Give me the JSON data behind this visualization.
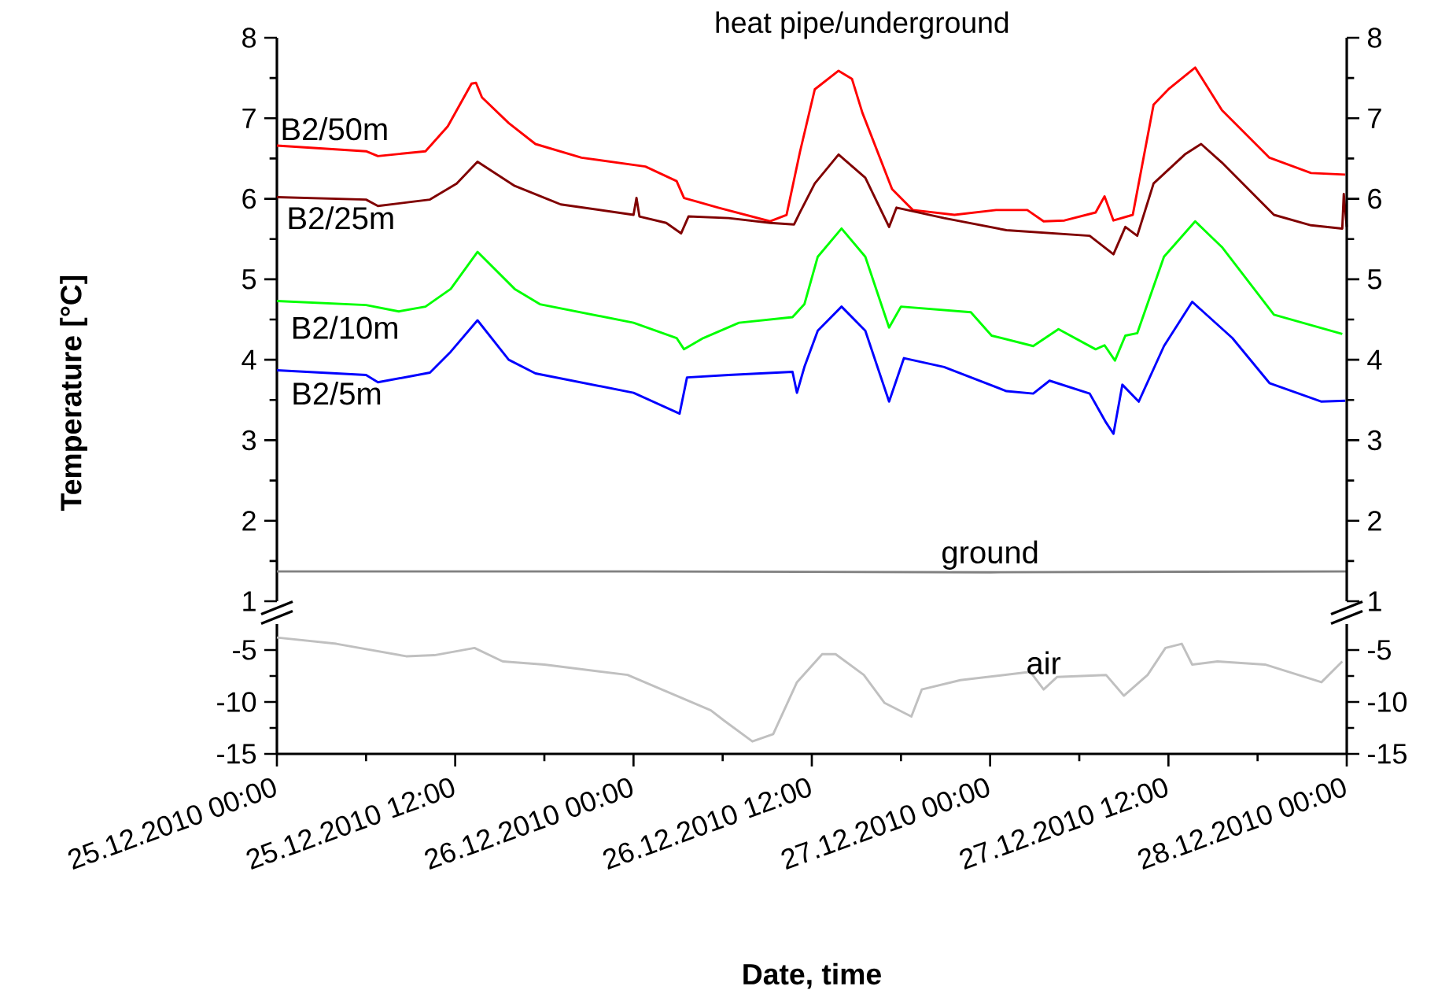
{
  "chart_data": [
    {
      "type": "line",
      "title": "heat pipe/underground",
      "ylabel": "Temperature [°C]",
      "xlim": [
        "2010-12-25T00:00",
        "2010-12-28T00:00"
      ],
      "ylim": [
        1,
        8
      ],
      "yticks": [
        1,
        2,
        3,
        4,
        5,
        6,
        7,
        8
      ],
      "y2lim": [
        1,
        8
      ],
      "y2ticks": [
        1,
        2,
        3,
        4,
        5,
        6,
        7,
        8
      ],
      "tick_labels": "y",
      "marker": "none",
      "series": [
        {
          "name": "B2/50m",
          "color": "#ff0000",
          "x": [
            "2010-12-25T00:00",
            "2010-12-25T06:00",
            "2010-12-25T06:48",
            "2010-12-25T10:00",
            "2010-12-25T11:30",
            "2010-12-25T13:06",
            "2010-12-25T13:24",
            "2010-12-25T13:48",
            "2010-12-25T15:36",
            "2010-12-25T17:24",
            "2010-12-25T20:30",
            "2010-12-26T00:48",
            "2010-12-26T02:54",
            "2010-12-26T03:24",
            "2010-12-26T05:42",
            "2010-12-26T09:12",
            "2010-12-26T10:18",
            "2010-12-26T11:12",
            "2010-12-26T12:12",
            "2010-12-26T13:48",
            "2010-12-26T14:42",
            "2010-12-26T15:24",
            "2010-12-26T17:24",
            "2010-12-26T18:48",
            "2010-12-26T21:36",
            "2010-12-27T00:24",
            "2010-12-27T02:30",
            "2010-12-27T03:36",
            "2010-12-27T05:00",
            "2010-12-27T07:06",
            "2010-12-27T07:42",
            "2010-12-27T08:18",
            "2010-12-27T09:36",
            "2010-12-27T11:00",
            "2010-12-27T12:00",
            "2010-12-27T13:48",
            "2010-12-27T15:36",
            "2010-12-27T18:48",
            "2010-12-27T21:36",
            "2010-12-27T23:54"
          ],
          "values": [
            6.66,
            6.59,
            6.53,
            6.59,
            6.9,
            7.43,
            7.44,
            7.26,
            6.94,
            6.68,
            6.51,
            6.4,
            6.22,
            6.01,
            5.89,
            5.72,
            5.8,
            6.58,
            7.36,
            7.59,
            7.49,
            7.07,
            6.12,
            5.86,
            5.8,
            5.86,
            5.86,
            5.72,
            5.73,
            5.83,
            6.03,
            5.73,
            5.8,
            7.17,
            7.36,
            7.63,
            7.1,
            6.51,
            6.32,
            6.3
          ]
        },
        {
          "name": "B2/25m",
          "color": "#800000",
          "x": [
            "2010-12-25T00:00",
            "2010-12-25T06:00",
            "2010-12-25T06:48",
            "2010-12-25T10:18",
            "2010-12-25T12:06",
            "2010-12-25T13:30",
            "2010-12-25T16:00",
            "2010-12-25T19:06",
            "2010-12-26T00:00",
            "2010-12-26T00:12",
            "2010-12-26T00:24",
            "2010-12-26T02:12",
            "2010-12-26T03:12",
            "2010-12-26T03:42",
            "2010-12-26T06:24",
            "2010-12-26T09:12",
            "2010-12-26T10:48",
            "2010-12-26T11:12",
            "2010-12-26T12:12",
            "2010-12-26T13:48",
            "2010-12-26T15:36",
            "2010-12-26T17:12",
            "2010-12-26T17:42",
            "2010-12-26T20:54",
            "2010-12-27T01:06",
            "2010-12-27T06:42",
            "2010-12-27T08:18",
            "2010-12-27T09:06",
            "2010-12-27T09:54",
            "2010-12-27T11:00",
            "2010-12-27T13:06",
            "2010-12-27T14:12",
            "2010-12-27T15:36",
            "2010-12-27T19:06",
            "2010-12-27T21:36",
            "2010-12-27T23:42",
            "2010-12-27T23:48",
            "2010-12-28T00:00"
          ],
          "values": [
            6.02,
            5.99,
            5.91,
            5.99,
            6.19,
            6.46,
            6.16,
            5.93,
            5.8,
            6.01,
            5.78,
            5.7,
            5.57,
            5.78,
            5.76,
            5.7,
            5.68,
            5.83,
            6.19,
            6.55,
            6.26,
            5.65,
            5.89,
            5.76,
            5.61,
            5.54,
            5.31,
            5.65,
            5.54,
            6.19,
            6.55,
            6.68,
            6.45,
            5.8,
            5.67,
            5.63,
            6.06,
            5.65
          ]
        },
        {
          "name": "B2/10m",
          "color": "#00ff00",
          "x": [
            "2010-12-25T00:00",
            "2010-12-25T06:00",
            "2010-12-25T08:12",
            "2010-12-25T10:00",
            "2010-12-25T11:42",
            "2010-12-25T13:30",
            "2010-12-25T16:00",
            "2010-12-25T17:42",
            "2010-12-26T00:00",
            "2010-12-26T02:54",
            "2010-12-26T03:24",
            "2010-12-26T04:42",
            "2010-12-26T07:06",
            "2010-12-26T10:42",
            "2010-12-26T11:30",
            "2010-12-26T12:24",
            "2010-12-26T14:00",
            "2010-12-26T15:36",
            "2010-12-26T17:12",
            "2010-12-26T18:00",
            "2010-12-26T22:42",
            "2010-12-27T00:06",
            "2010-12-27T02:54",
            "2010-12-27T04:36",
            "2010-12-27T07:06",
            "2010-12-27T07:42",
            "2010-12-27T08:24",
            "2010-12-27T09:06",
            "2010-12-27T09:54",
            "2010-12-27T11:42",
            "2010-12-27T13:48",
            "2010-12-27T15:36",
            "2010-12-27T19:06",
            "2010-12-27T23:42"
          ],
          "values": [
            4.73,
            4.68,
            4.6,
            4.66,
            4.88,
            5.34,
            4.88,
            4.69,
            4.46,
            4.27,
            4.13,
            4.27,
            4.46,
            4.53,
            4.69,
            5.28,
            5.63,
            5.28,
            4.4,
            4.66,
            4.59,
            4.3,
            4.17,
            4.38,
            4.13,
            4.18,
            3.99,
            4.3,
            4.33,
            5.28,
            5.72,
            5.4,
            4.56,
            4.32
          ]
        },
        {
          "name": "B2/5m",
          "color": "#0000ff",
          "x": [
            "2010-12-25T00:00",
            "2010-12-25T06:00",
            "2010-12-25T06:48",
            "2010-12-25T10:18",
            "2010-12-25T11:42",
            "2010-12-25T13:30",
            "2010-12-25T15:36",
            "2010-12-25T17:24",
            "2010-12-26T00:00",
            "2010-12-26T03:06",
            "2010-12-26T03:36",
            "2010-12-26T06:24",
            "2010-12-26T10:42",
            "2010-12-26T11:00",
            "2010-12-26T11:30",
            "2010-12-26T12:24",
            "2010-12-26T14:00",
            "2010-12-26T15:36",
            "2010-12-26T17:12",
            "2010-12-26T18:12",
            "2010-12-26T20:54",
            "2010-12-27T01:06",
            "2010-12-27T02:54",
            "2010-12-27T04:00",
            "2010-12-27T06:42",
            "2010-12-27T07:48",
            "2010-12-27T08:18",
            "2010-12-27T08:54",
            "2010-12-27T10:00",
            "2010-12-27T11:42",
            "2010-12-27T13:36",
            "2010-12-27T16:18",
            "2010-12-27T18:48",
            "2010-12-27T22:18",
            "2010-12-27T23:54"
          ],
          "values": [
            3.87,
            3.81,
            3.72,
            3.84,
            4.1,
            4.49,
            4.0,
            3.83,
            3.59,
            3.33,
            3.78,
            3.81,
            3.85,
            3.59,
            3.91,
            4.36,
            4.66,
            4.36,
            3.48,
            4.02,
            3.91,
            3.61,
            3.58,
            3.74,
            3.58,
            3.22,
            3.08,
            3.69,
            3.48,
            4.17,
            4.72,
            4.27,
            3.71,
            3.48,
            3.49
          ]
        },
        {
          "name": "ground",
          "color": "#808080",
          "x": [
            "2010-12-25T00:00",
            "2010-12-26T00:00",
            "2010-12-27T00:00",
            "2010-12-28T00:00"
          ],
          "values": [
            1.37,
            1.37,
            1.36,
            1.37
          ]
        }
      ]
    },
    {
      "type": "line",
      "xlabel": "Date, time",
      "xlim": [
        "2010-12-25T00:00",
        "2010-12-28T00:00"
      ],
      "xticks": [
        {
          "value": "2010-12-25T00:00",
          "label": "25.12.2010 00:00"
        },
        {
          "value": "2010-12-25T12:00",
          "label": "25.12.2010 12:00"
        },
        {
          "value": "2010-12-26T00:00",
          "label": "26.12.2010 00:00"
        },
        {
          "value": "2010-12-26T12:00",
          "label": "26.12.2010 12:00"
        },
        {
          "value": "2010-12-27T00:00",
          "label": "27.12.2010 00:00"
        },
        {
          "value": "2010-12-27T12:00",
          "label": "27.12.2010 12:00"
        },
        {
          "value": "2010-12-28T00:00",
          "label": "28.12.2010 00:00"
        }
      ],
      "ylim": [
        -15,
        -2.5
      ],
      "yticks": [
        -15,
        -10,
        -5
      ],
      "y2lim": [
        -15,
        -2.5
      ],
      "y2ticks": [
        -15,
        -10,
        -5
      ],
      "marker": "none",
      "series": [
        {
          "name": "air",
          "color": "#c0c0c0",
          "x": [
            "2010-12-25T00:00",
            "2010-12-25T04:00",
            "2010-12-25T08:42",
            "2010-12-25T10:36",
            "2010-12-25T13:18",
            "2010-12-25T15:12",
            "2010-12-25T18:00",
            "2010-12-25T23:36",
            "2010-12-26T01:54",
            "2010-12-26T05:12",
            "2010-12-26T06:06",
            "2010-12-26T08:00",
            "2010-12-26T09:24",
            "2010-12-26T11:00",
            "2010-12-26T12:42",
            "2010-12-26T13:36",
            "2010-12-26T15:30",
            "2010-12-26T16:54",
            "2010-12-26T18:42",
            "2010-12-26T19:24",
            "2010-12-26T22:00",
            "2010-12-27T02:42",
            "2010-12-27T03:36",
            "2010-12-27T04:30",
            "2010-12-27T07:48",
            "2010-12-27T09:00",
            "2010-12-27T10:36",
            "2010-12-27T11:48",
            "2010-12-27T12:54",
            "2010-12-27T13:36",
            "2010-12-27T15:18",
            "2010-12-27T18:30",
            "2010-12-27T22:18",
            "2010-12-27T23:42"
          ],
          "values": [
            -3.8,
            -4.4,
            -5.6,
            -5.5,
            -4.8,
            -6.1,
            -6.4,
            -7.4,
            -8.8,
            -10.8,
            -11.8,
            -13.8,
            -13.1,
            -8.1,
            -5.4,
            -5.4,
            -7.4,
            -10.1,
            -11.4,
            -8.8,
            -7.9,
            -7.1,
            -8.8,
            -7.6,
            -7.4,
            -9.4,
            -7.4,
            -4.8,
            -4.4,
            -6.4,
            -6.1,
            -6.4,
            -8.1,
            -6.1
          ]
        }
      ]
    }
  ]
}
